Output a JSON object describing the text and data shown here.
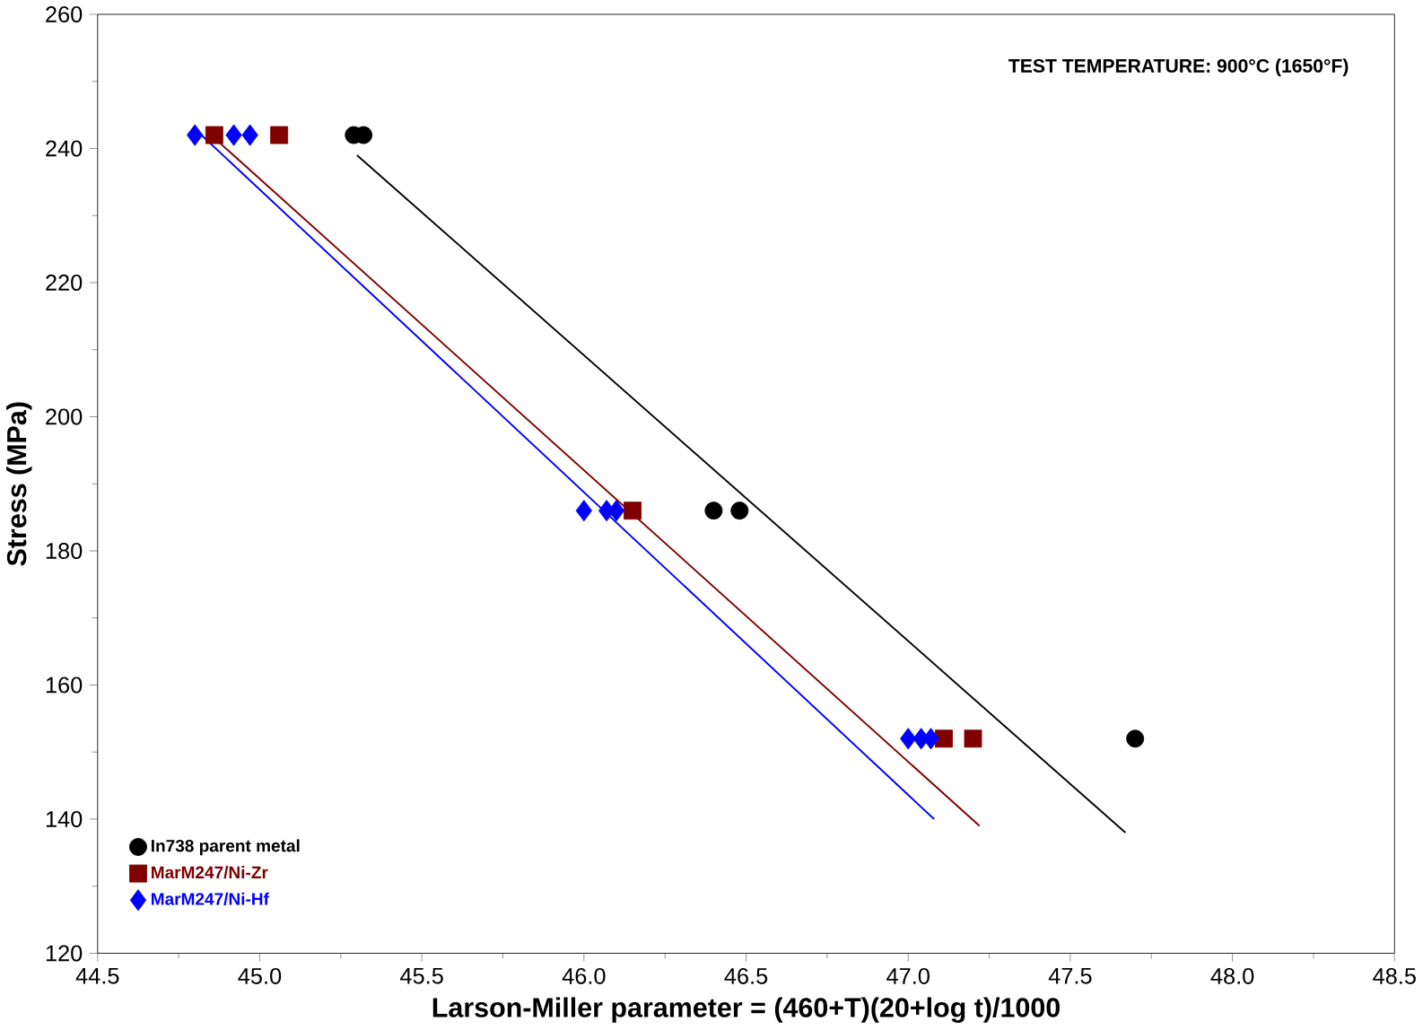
{
  "chart_data": {
    "type": "scatter",
    "xlabel": "Larson-Miller parameter = (460+T)(20+log t)/1000",
    "ylabel": "Stress (MPa)",
    "annotations": [
      "TEST TEMPERATURE:  900°C (1650°F)"
    ],
    "xlim": [
      44.5,
      48.5
    ],
    "xticks": [
      {
        "value": 44.5,
        "label": "44.5"
      },
      {
        "value": 45.0,
        "label": "45.0"
      },
      {
        "value": 45.5,
        "label": "45.5"
      },
      {
        "value": 46.0,
        "label": "46.0"
      },
      {
        "value": 46.5,
        "label": "46.5"
      },
      {
        "value": 47.0,
        "label": "47.0"
      },
      {
        "value": 47.5,
        "label": "47.5"
      },
      {
        "value": 48.0,
        "label": "48.0"
      },
      {
        "value": 48.5,
        "label": "48.5"
      }
    ],
    "ylim": [
      120,
      260
    ],
    "yticks": [
      120,
      140,
      160,
      180,
      200,
      220,
      240,
      260
    ],
    "grid": false,
    "legend": "bottom left",
    "series": [
      {
        "name": "In738 parent metal",
        "color": "#000000",
        "marker": "circle",
        "x": [
          45.29,
          45.32,
          46.4,
          46.48,
          47.7
        ],
        "values": [
          242,
          242,
          186,
          186,
          152
        ]
      },
      {
        "name": "MarM247/Ni-Zr",
        "color": "#800000",
        "marker": "square",
        "x": [
          44.86,
          45.06,
          46.15,
          47.11,
          47.2
        ],
        "values": [
          242,
          242,
          186,
          152,
          152
        ]
      },
      {
        "name": "MarM247/Ni-Hf",
        "color": "#0000ff",
        "marker": "diamond",
        "x": [
          44.8,
          44.92,
          44.97,
          46.0,
          46.07,
          46.1,
          47.0,
          47.04,
          47.07
        ],
        "values": [
          242,
          242,
          242,
          186,
          186,
          186,
          152,
          152,
          152
        ]
      },
      {
        "type": "line",
        "color": "#000000",
        "marker": "none",
        "x": [
          45.3,
          47.67
        ],
        "values": [
          239,
          138
        ]
      },
      {
        "type": "line",
        "color": "#800000",
        "marker": "none",
        "x": [
          44.85,
          47.22
        ],
        "values": [
          242,
          139
        ]
      },
      {
        "type": "line",
        "color": "#0000ff",
        "marker": "none",
        "x": [
          44.82,
          47.08
        ],
        "values": [
          242,
          140
        ]
      }
    ]
  }
}
